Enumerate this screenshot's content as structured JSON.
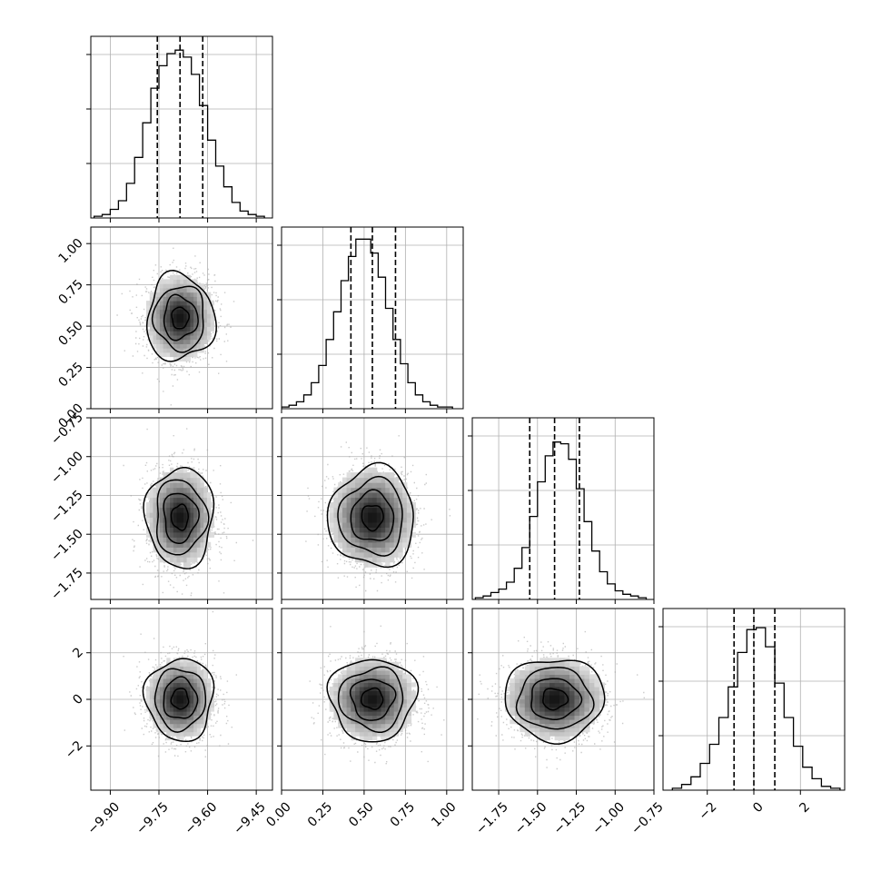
{
  "chart_data": {
    "type": "corner",
    "grid": true,
    "parameters": [
      {
        "range": [
          -9.96,
          -9.4
        ],
        "ticks": [
          -9.9,
          -9.75,
          -9.6,
          -9.45
        ],
        "tick_labels": [
          "−9.90",
          "−9.75",
          "−9.60",
          "−9.45"
        ],
        "quantiles": [
          -9.755,
          -9.685,
          -9.615
        ],
        "mean": -9.685,
        "sd": 0.052
      },
      {
        "range": [
          0.0,
          1.1
        ],
        "ticks": [
          0.0,
          0.25,
          0.5,
          0.75,
          1.0
        ],
        "tick_labels": [
          "0.00",
          "0.25",
          "0.50",
          "0.75",
          "1.00"
        ],
        "quantiles": [
          0.42,
          0.55,
          0.69
        ],
        "mean": 0.55,
        "sd": 0.13
      },
      {
        "range": [
          -1.92,
          -0.75
        ],
        "ticks": [
          -1.75,
          -1.5,
          -1.25,
          -1.0,
          -0.75
        ],
        "tick_labels": [
          "−1.75",
          "−1.50",
          "−1.25",
          "−1.00",
          "−0.75"
        ],
        "quantiles": [
          -1.55,
          -1.39,
          -1.23
        ],
        "mean": -1.39,
        "sd": 0.16
      },
      {
        "range": [
          -3.9,
          3.9
        ],
        "ticks": [
          -2,
          0,
          2
        ],
        "tick_labels": [
          "−2",
          "0",
          "2"
        ],
        "quantiles": [
          -0.85,
          0.0,
          0.9
        ],
        "mean": 0.02,
        "sd": 0.88
      }
    ],
    "histograms": [
      {
        "param": 0,
        "bin_edges": [
          -9.95,
          -9.925,
          -9.9,
          -9.875,
          -9.85,
          -9.825,
          -9.8,
          -9.775,
          -9.75,
          -9.725,
          -9.7,
          -9.675,
          -9.65,
          -9.625,
          -9.6,
          -9.575,
          -9.55,
          -9.525,
          -9.5,
          -9.475,
          -9.45,
          -9.425
        ],
        "counts": [
          1,
          2,
          5,
          10,
          20,
          35,
          55,
          75,
          88,
          95,
          97,
          93,
          83,
          65,
          45,
          30,
          18,
          9,
          4,
          2,
          1
        ],
        "ylim": [
          0,
          105
        ]
      },
      {
        "param": 1,
        "bin_edges": [
          0.0,
          0.045,
          0.09,
          0.135,
          0.18,
          0.225,
          0.27,
          0.315,
          0.36,
          0.405,
          0.45,
          0.495,
          0.54,
          0.585,
          0.63,
          0.675,
          0.72,
          0.765,
          0.81,
          0.855,
          0.9,
          0.945,
          0.99,
          1.035
        ],
        "counts": [
          1,
          2,
          4,
          8,
          15,
          25,
          40,
          56,
          74,
          88,
          98,
          98,
          90,
          76,
          58,
          40,
          26,
          15,
          8,
          4,
          2,
          1,
          1
        ],
        "ylim": [
          0,
          105
        ]
      },
      {
        "param": 2,
        "bin_edges": [
          -1.9,
          -1.85,
          -1.8,
          -1.75,
          -1.7,
          -1.65,
          -1.6,
          -1.55,
          -1.5,
          -1.45,
          -1.4,
          -1.35,
          -1.3,
          -1.25,
          -1.2,
          -1.15,
          -1.1,
          -1.05,
          -1.0,
          -0.95,
          -0.9,
          -0.85,
          -0.8
        ],
        "counts": [
          1,
          2,
          4,
          6,
          10,
          18,
          30,
          48,
          68,
          83,
          91,
          90,
          81,
          64,
          45,
          28,
          16,
          9,
          5,
          3,
          2,
          1
        ],
        "ylim": [
          0,
          105
        ]
      },
      {
        "param": 3,
        "bin_edges": [
          -3.5,
          -3.1,
          -2.7,
          -2.3,
          -1.9,
          -1.5,
          -1.1,
          -0.7,
          -0.3,
          0.1,
          0.5,
          0.9,
          1.3,
          1.7,
          2.1,
          2.5,
          2.9,
          3.3,
          3.7
        ],
        "counts": [
          1,
          3,
          7,
          14,
          24,
          38,
          54,
          72,
          84,
          85,
          75,
          56,
          38,
          23,
          12,
          6,
          2,
          1
        ],
        "ylim": [
          0,
          95
        ]
      }
    ],
    "contour_levels": [
      0.118,
      0.393,
      0.675,
      0.865
    ]
  }
}
